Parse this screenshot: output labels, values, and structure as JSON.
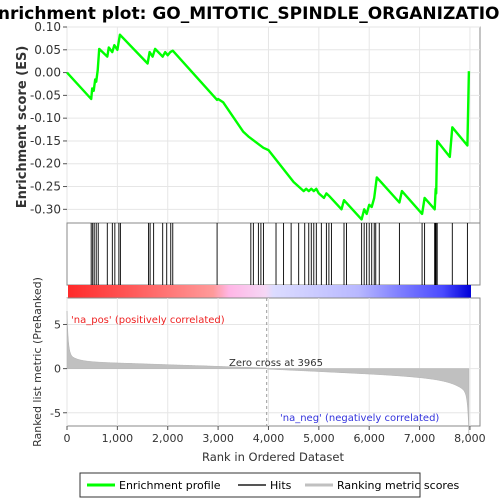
{
  "chart_data": {
    "type": "line",
    "title": "Enrichment plot: GO_MITOTIC_SPINDLE_ORGANIZATION",
    "es_panel": {
      "ylabel": "Enrichment score (ES)",
      "ylim": [
        -0.33,
        0.1
      ],
      "yticks": [
        0.1,
        0.05,
        0.0,
        -0.05,
        -0.1,
        -0.15,
        -0.2,
        -0.25,
        -0.3
      ],
      "ytick_labels": [
        "0.10",
        "0.05",
        "0.00",
        "-0.05",
        "-0.10",
        "-0.15",
        "-0.20",
        "-0.25",
        "-0.30"
      ],
      "color": "#00ff00",
      "series": [
        {
          "name": "Enrichment profile",
          "x": [
            0,
            480,
            500,
            530,
            560,
            580,
            610,
            640,
            800,
            830,
            900,
            940,
            1000,
            1050,
            1600,
            1640,
            1700,
            1750,
            1900,
            1950,
            2000,
            2050,
            2100,
            2980,
            3000,
            3100,
            3500,
            3600,
            3900,
            4000,
            4500,
            4700,
            4750,
            4800,
            4850,
            4900,
            4950,
            5000,
            5100,
            5150,
            5200,
            5450,
            5500,
            5850,
            5900,
            5950,
            6000,
            6050,
            6100,
            6150,
            6600,
            6650,
            7050,
            7100,
            7300,
            7320,
            7330,
            7340,
            7350,
            7600,
            7650,
            7950,
            7980
          ],
          "y": [
            0.0,
            -0.058,
            -0.035,
            -0.04,
            -0.015,
            -0.02,
            0.005,
            0.052,
            0.035,
            0.055,
            0.045,
            0.06,
            0.05,
            0.083,
            0.02,
            0.045,
            0.035,
            0.052,
            0.035,
            0.045,
            0.038,
            0.045,
            0.048,
            -0.06,
            -0.058,
            -0.065,
            -0.13,
            -0.14,
            -0.165,
            -0.17,
            -0.24,
            -0.26,
            -0.255,
            -0.26,
            -0.255,
            -0.26,
            -0.255,
            -0.265,
            -0.275,
            -0.265,
            -0.27,
            -0.3,
            -0.28,
            -0.322,
            -0.3,
            -0.31,
            -0.29,
            -0.295,
            -0.275,
            -0.23,
            -0.285,
            -0.26,
            -0.31,
            -0.275,
            -0.3,
            -0.255,
            -0.265,
            -0.2,
            -0.15,
            -0.185,
            -0.12,
            -0.16,
            0.003
          ]
        }
      ]
    },
    "hits_panel": {
      "legend_label": "Hits",
      "positions": [
        480,
        510,
        540,
        580,
        620,
        800,
        900,
        950,
        1030,
        1060,
        1620,
        1650,
        1720,
        1900,
        1980,
        2060,
        2100,
        2980,
        3650,
        3700,
        3800,
        3850,
        3900,
        4150,
        4300,
        4450,
        4600,
        4720,
        4800,
        4850,
        4900,
        4950,
        5050,
        5150,
        5200,
        5250,
        5500,
        5550,
        5850,
        5900,
        5950,
        6000,
        6050,
        6100,
        6130,
        6200,
        6600,
        7050,
        7100,
        7300,
        7310,
        7320,
        7330,
        7350,
        7650,
        7950
      ]
    },
    "ranked_panel": {
      "ylabel": "Ranked list metric (PreRanked)",
      "xlabel": "Rank in Ordered Dataset",
      "ylim": [
        -6.5,
        8
      ],
      "yticks": [
        5,
        0,
        -5
      ],
      "xlim": [
        0,
        8200
      ],
      "xticks": [
        0,
        1000,
        2000,
        3000,
        4000,
        5000,
        6000,
        7000,
        8000
      ],
      "xtick_labels": [
        "0",
        "1,000",
        "2,000",
        "3,000",
        "4,000",
        "5,000",
        "6,000",
        "7,000",
        "8,000"
      ],
      "n_genes": 7980,
      "zero_cross": 3965,
      "zero_cross_label": "Zero cross at 3965",
      "pos_label": "'na_pos' (positively correlated)",
      "neg_label": "'na_neg' (negatively correlated)",
      "pos_color": "#ff0000",
      "neg_color": "#0000ff",
      "fill_color": "#c0c0c0"
    },
    "legend": {
      "items": [
        {
          "label": "Enrichment profile",
          "color": "#00ff00"
        },
        {
          "label": "Hits",
          "color": "#555555"
        },
        {
          "label": "Ranking metric scores",
          "color": "#c0c0c0"
        }
      ]
    }
  }
}
